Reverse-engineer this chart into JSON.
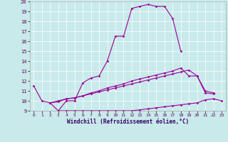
{
  "xlabel": "Windchill (Refroidissement éolien,°C)",
  "background_color": "#c8eaea",
  "line_color": "#990099",
  "xlim": [
    -0.5,
    23.5
  ],
  "ylim": [
    9,
    20
  ],
  "xticks": [
    0,
    1,
    2,
    3,
    4,
    5,
    6,
    7,
    8,
    9,
    10,
    11,
    12,
    13,
    14,
    15,
    16,
    17,
    18,
    19,
    20,
    21,
    22,
    23
  ],
  "yticks": [
    9,
    10,
    11,
    12,
    13,
    14,
    15,
    16,
    17,
    18,
    19,
    20
  ],
  "line1_x": [
    0,
    1,
    2,
    3,
    4,
    5,
    6,
    7,
    8,
    9,
    10,
    11,
    12,
    13,
    14,
    15,
    16,
    17,
    18
  ],
  "line1_y": [
    11.5,
    10.0,
    9.8,
    9.0,
    10.0,
    10.0,
    11.8,
    12.3,
    12.5,
    14.0,
    16.5,
    16.5,
    19.3,
    19.5,
    19.7,
    19.5,
    19.5,
    18.3,
    15.0
  ],
  "line2_x": [
    3,
    4,
    5,
    6,
    7,
    8,
    9,
    10,
    11,
    12,
    13,
    14,
    15,
    16,
    17,
    18,
    19,
    20,
    21,
    22,
    23
  ],
  "line2_y": [
    9.0,
    9.0,
    9.0,
    9.0,
    9.0,
    9.0,
    9.0,
    9.0,
    9.0,
    9.0,
    9.1,
    9.2,
    9.3,
    9.4,
    9.5,
    9.6,
    9.7,
    9.8,
    10.1,
    10.2,
    10.0
  ],
  "line3_x": [
    2,
    3,
    4,
    5,
    6,
    7,
    8,
    9,
    10,
    11,
    12,
    13,
    14,
    15,
    16,
    17,
    18,
    19,
    20,
    21,
    22
  ],
  "line3_y": [
    9.8,
    9.9,
    10.2,
    10.3,
    10.5,
    10.8,
    11.0,
    11.3,
    11.5,
    11.7,
    12.0,
    12.2,
    12.4,
    12.6,
    12.8,
    13.0,
    13.3,
    12.5,
    12.5,
    11.0,
    10.8
  ],
  "line4_x": [
    2,
    3,
    4,
    5,
    6,
    7,
    8,
    9,
    10,
    11,
    12,
    13,
    14,
    15,
    16,
    17,
    18,
    19,
    20,
    21,
    22
  ],
  "line4_y": [
    9.8,
    10.0,
    10.2,
    10.3,
    10.5,
    10.7,
    10.9,
    11.1,
    11.3,
    11.5,
    11.7,
    11.9,
    12.1,
    12.3,
    12.5,
    12.7,
    12.9,
    13.1,
    12.5,
    10.8,
    10.7
  ]
}
